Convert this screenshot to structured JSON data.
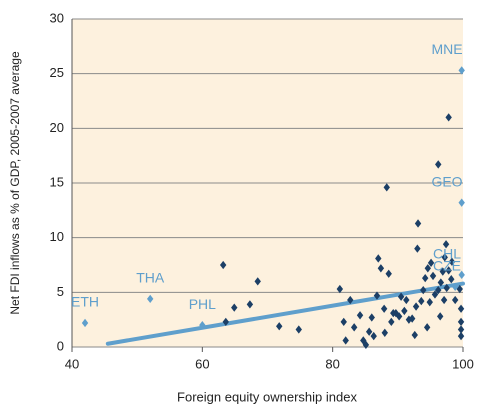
{
  "chart_data": {
    "type": "scatter",
    "x_label": "Foreign equity ownership index",
    "y_label": "Net FDI inflows as % of GDP, 2005-2007 average",
    "xlim": [
      40,
      100
    ],
    "xticks": [
      40,
      60,
      80,
      100
    ],
    "ylim": [
      0,
      30
    ],
    "yticks": [
      0,
      5,
      10,
      15,
      20,
      25,
      30
    ],
    "grid": true,
    "series": [
      {
        "color": "#1c3f66",
        "x": [
          63.2,
          63.6,
          64.9,
          67.3,
          68.5,
          71.8,
          74.8,
          81.1,
          81.7,
          82.0,
          82.7,
          83.3,
          84.2,
          84.7,
          85.1,
          85.6,
          86.0,
          86.3,
          86.8,
          87.0,
          87.4,
          87.9,
          88.0,
          88.3,
          88.6,
          89.0,
          89.3,
          89.7,
          90.2,
          90.5,
          91.0,
          91.3,
          91.7,
          92.2,
          92.6,
          92.8,
          93.0,
          93.1,
          93.6,
          93.9,
          94.2,
          94.5,
          94.6,
          94.9,
          95.1,
          95.4,
          95.7,
          96.2,
          96.2,
          96.5,
          96.6,
          96.9,
          97.1,
          97.2,
          97.4,
          97.5,
          97.8,
          97.8,
          98.2,
          98.3,
          98.8,
          99.5,
          99.7,
          99.7,
          99.7,
          99.7
        ],
        "values": [
          7.5,
          2.3,
          3.6,
          3.9,
          6.0,
          1.9,
          1.6,
          5.3,
          2.3,
          0.6,
          4.3,
          1.8,
          2.9,
          0.6,
          0.2,
          1.4,
          2.7,
          1.0,
          4.7,
          8.1,
          7.2,
          3.5,
          1.3,
          14.6,
          6.7,
          2.3,
          3.1,
          3.1,
          2.8,
          4.6,
          3.3,
          4.3,
          2.5,
          2.6,
          1.1,
          3.7,
          9.0,
          11.3,
          4.2,
          5.2,
          6.3,
          1.8,
          7.2,
          4.1,
          7.7,
          6.5,
          4.8,
          16.7,
          5.2,
          2.8,
          5.9,
          6.9,
          4.3,
          8.2,
          9.4,
          5.4,
          21.0,
          7.0,
          6.2,
          7.8,
          4.3,
          5.3,
          3.5,
          2.3,
          1.6,
          1.0
        ]
      },
      {
        "color": "#5f9fcc",
        "labels": [
          "ETH",
          "THA",
          "PHL",
          "MNE",
          "GEO",
          "CHL",
          "CZE"
        ],
        "x": [
          42.0,
          52.0,
          60.0,
          99.8,
          99.8,
          99.8,
          98.8
        ],
        "values": [
          2.2,
          4.4,
          2.0,
          25.3,
          13.2,
          6.6,
          5.5
        ]
      }
    ],
    "trend": {
      "color": "#5f9fcc",
      "x": [
        45.5,
        100
      ],
      "values": [
        0.3,
        5.8
      ]
    }
  }
}
